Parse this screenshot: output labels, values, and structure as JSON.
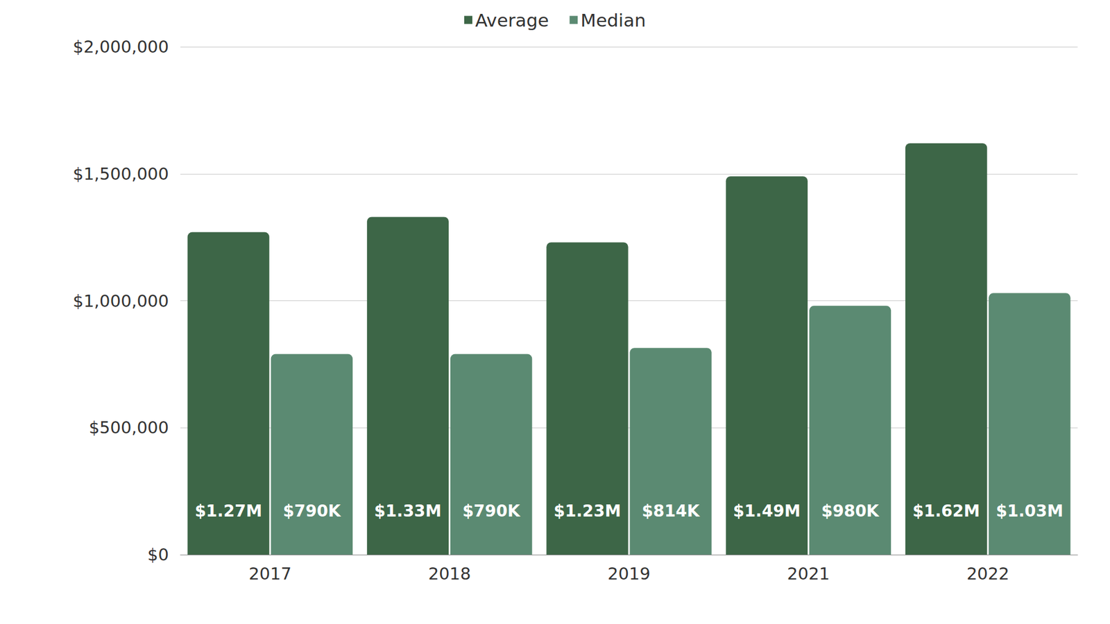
{
  "chart_data": {
    "type": "bar",
    "categories": [
      "2017",
      "2018",
      "2019",
      "2021",
      "2022"
    ],
    "series": [
      {
        "name": "Average",
        "color": "#3d6647",
        "values": [
          1270000,
          1330000,
          1230000,
          1490000,
          1620000
        ],
        "value_labels": [
          "$1.27M",
          "$1.33M",
          "$1.23M",
          "$1.49M",
          "$1.62M"
        ]
      },
      {
        "name": "Median",
        "color": "#5b8a72",
        "values": [
          790000,
          790000,
          814000,
          980000,
          1030000
        ],
        "value_labels": [
          "$790K",
          "$790K",
          "$814K",
          "$980K",
          "$1.03M"
        ]
      }
    ],
    "ylim": [
      0,
      2000000
    ],
    "yticks": [
      {
        "value": 0,
        "label": "$0"
      },
      {
        "value": 500000,
        "label": "$500,000"
      },
      {
        "value": 1000000,
        "label": "$1,000,000"
      },
      {
        "value": 1500000,
        "label": "$1,500,000"
      },
      {
        "value": 2000000,
        "label": "$2,000,000"
      }
    ],
    "grid": true,
    "legend": "top",
    "data_labels": true
  }
}
